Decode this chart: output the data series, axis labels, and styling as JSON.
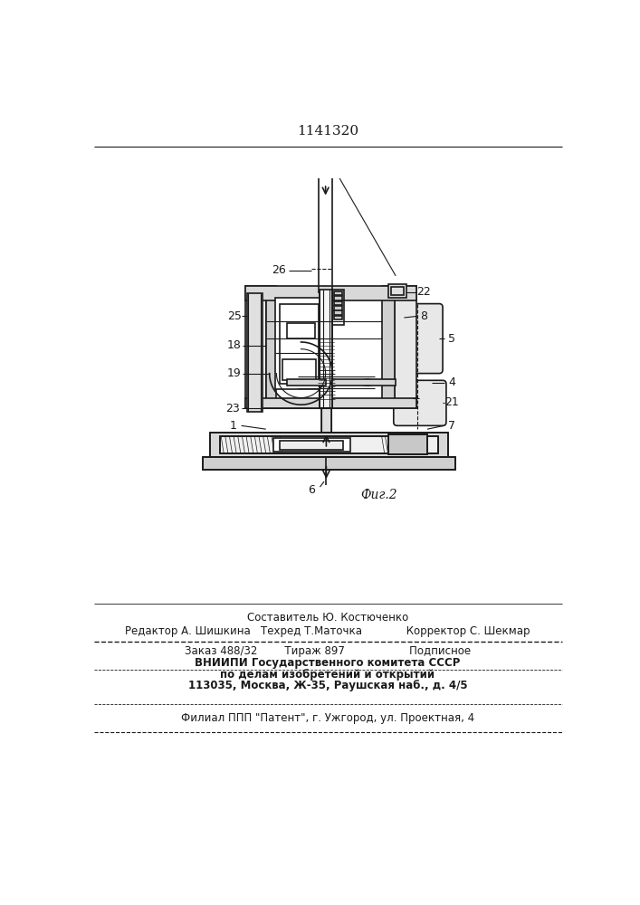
{
  "patent_number": "1141320",
  "fig_label": "Фиг.2",
  "bg": "#ffffff",
  "lc": "#1a1a1a",
  "footer": {
    "line1": "Составитель Ю. Костюченко",
    "line2": "Редактор А. Шишкина   Техред Т.Маточка             Корректор С. Шекмар",
    "line3": "Заказ 488/32        Тираж 897                   Подписное",
    "line4": "ВНИИПИ Государственного комитета СССР",
    "line5": "по делам изобретений и открытий",
    "line6": "113035, Москва, Ж-35, Раушская наб., д. 4/5",
    "line7": "Филиал ППП \"Патент\", г. Ужгород, ул. Проектная, 4"
  }
}
